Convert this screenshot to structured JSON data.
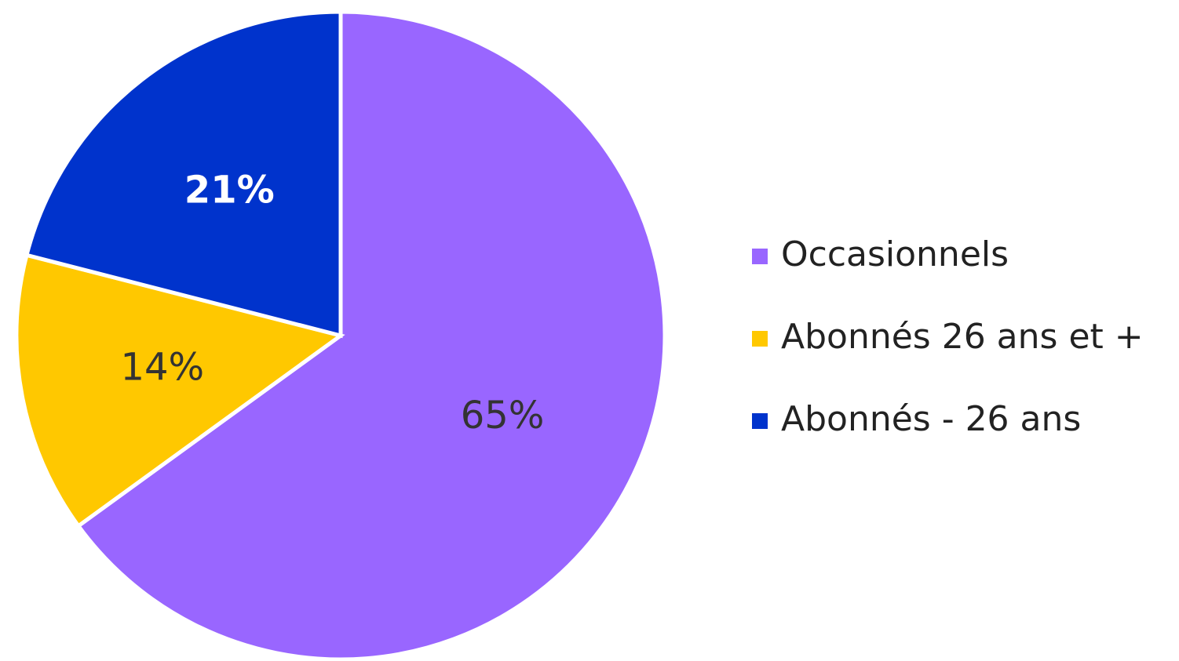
{
  "chart_data": {
    "type": "pie",
    "categories": [
      "Occasionnels",
      "Abonnés 26 ans et +",
      "Abonnés - 26 ans"
    ],
    "values": [
      65,
      14,
      21
    ],
    "value_labels": [
      "65%",
      "14%",
      "21%"
    ],
    "colors": [
      "#9966ff",
      "#ffc800",
      "#0033cc"
    ],
    "legend": "right"
  }
}
